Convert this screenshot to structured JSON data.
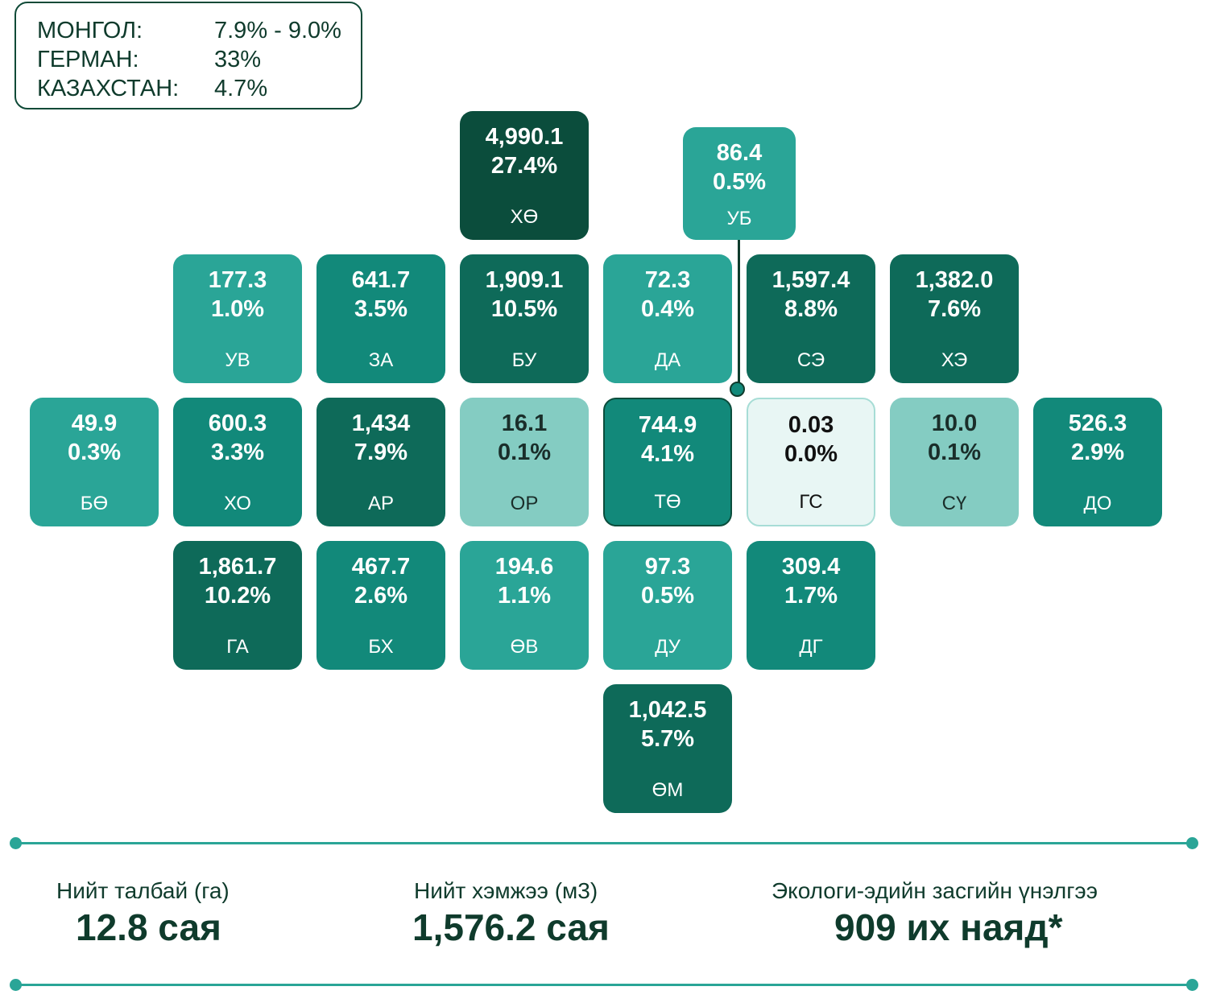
{
  "legend": {
    "rows": [
      {
        "label": "МОНГОЛ:",
        "value": "7.9% - 9.0%"
      },
      {
        "label": "ГЕРМАН:",
        "value": "33%"
      },
      {
        "label": "КАЗАХСТАН:",
        "value": "4.7%"
      }
    ]
  },
  "tiles": [
    {
      "value": "4,990.1",
      "percent": "27.4%",
      "code": "ХӨ"
    },
    {
      "value": "86.4",
      "percent": "0.5%",
      "code": "УБ"
    },
    {
      "value": "177.3",
      "percent": "1.0%",
      "code": "УВ"
    },
    {
      "value": "641.7",
      "percent": "3.5%",
      "code": "ЗА"
    },
    {
      "value": "1,909.1",
      "percent": "10.5%",
      "code": "БУ"
    },
    {
      "value": "72.3",
      "percent": "0.4%",
      "code": "ДА"
    },
    {
      "value": "1,597.4",
      "percent": "8.8%",
      "code": "СЭ"
    },
    {
      "value": "1,382.0",
      "percent": "7.6%",
      "code": "ХЭ"
    },
    {
      "value": "49.9",
      "percent": "0.3%",
      "code": "БӨ"
    },
    {
      "value": "600.3",
      "percent": "3.3%",
      "code": "ХО"
    },
    {
      "value": "1,434",
      "percent": "7.9%",
      "code": "АР"
    },
    {
      "value": "16.1",
      "percent": "0.1%",
      "code": "ОР"
    },
    {
      "value": "744.9",
      "percent": "4.1%",
      "code": "ТӨ"
    },
    {
      "value": "0.03",
      "percent": "0.0%",
      "code": "ГС"
    },
    {
      "value": "10.0",
      "percent": "0.1%",
      "code": "СҮ"
    },
    {
      "value": "526.3",
      "percent": "2.9%",
      "code": "ДО"
    },
    {
      "value": "1,861.7",
      "percent": "10.2%",
      "code": "ГА"
    },
    {
      "value": "467.7",
      "percent": "2.6%",
      "code": "БХ"
    },
    {
      "value": "194.6",
      "percent": "1.1%",
      "code": "ӨВ"
    },
    {
      "value": "97.3",
      "percent": "0.5%",
      "code": "ДУ"
    },
    {
      "value": "309.4",
      "percent": "1.7%",
      "code": "ДГ"
    },
    {
      "value": "1,042.5",
      "percent": "5.7%",
      "code": "ӨМ"
    }
  ],
  "summary": {
    "area": {
      "label": "Нийт талбай (га)",
      "value": "12.8 сая"
    },
    "volume": {
      "label": "Нийт хэмжээ (м3)",
      "value": "1,576.2 сая"
    },
    "valuation": {
      "label": "Экологи-эдийн засгийн үнэлгээ",
      "value": "909 их наяд*"
    }
  },
  "colors": {
    "darkest": "#0b4d3c",
    "dark": "#0e6a59",
    "medium": "#12897a",
    "light": "#2aa597",
    "pale": "#84ccc2",
    "palest": "#e8f6f4",
    "line": "#2aa597"
  }
}
